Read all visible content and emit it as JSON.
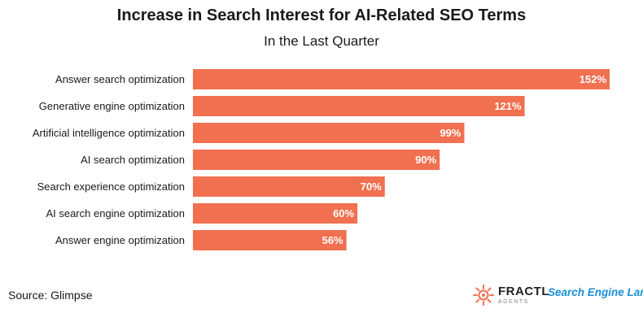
{
  "chart_data": {
    "type": "bar",
    "orientation": "horizontal",
    "title": "Increase in Search Interest for AI-Related SEO Terms",
    "subtitle": "In the Last Quarter",
    "categories": [
      "Answer search optimization",
      "Generative engine optimization",
      "Artificial intelligence optimization",
      "AI search optimization",
      "Search experience optimization",
      "AI search engine optimization",
      "Answer engine optimization"
    ],
    "values": [
      152,
      121,
      99,
      90,
      70,
      60,
      56
    ],
    "value_labels": [
      "152%",
      "121%",
      "99%",
      "90%",
      "70%",
      "60%",
      "56%"
    ],
    "unit": "%",
    "xlim": [
      0,
      152
    ],
    "grid": false,
    "bar_color": "#f07050",
    "label_color": "#ffffff"
  },
  "footer": {
    "source": "Source: Glimpse",
    "logo_fractl_name": "FRACTL",
    "logo_fractl_sub": "AGENTS",
    "logo_sel": "Search Engine Land"
  },
  "colors": {
    "fractl_accent": "#f07050",
    "sel_blue": "#1a8fd6"
  }
}
